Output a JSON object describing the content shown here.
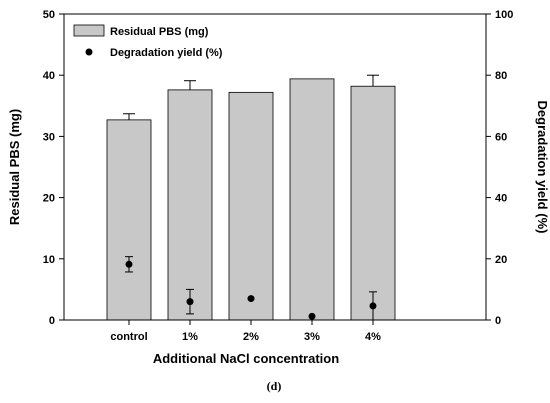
{
  "chart_data": {
    "type": "bar",
    "categories": [
      "control",
      "1%",
      "2%",
      "3%",
      "4%"
    ],
    "series": [
      {
        "name": "Residual PBS (mg)",
        "type": "bar",
        "axis": "left",
        "values": [
          32.7,
          37.6,
          37.2,
          39.4,
          38.2
        ],
        "errors": [
          1.0,
          1.5,
          null,
          null,
          1.8
        ],
        "color": "#c8c8c8"
      },
      {
        "name": "Degradation yield (%)",
        "type": "scatter",
        "axis": "right",
        "values": [
          18.2,
          6.0,
          7.0,
          1.2,
          4.6
        ],
        "errors": [
          2.5,
          4.0,
          null,
          null,
          4.6
        ],
        "color": "#000000"
      }
    ],
    "xlabel": "Additional NaCl concentration",
    "ylabel": "Residual PBS (mg)",
    "y2label": "Degradation yield (%)",
    "ylim": [
      0,
      50
    ],
    "y2lim": [
      0,
      100
    ],
    "yticks": [
      0,
      10,
      20,
      30,
      40,
      50
    ],
    "y2ticks": [
      0,
      20,
      40,
      60,
      80,
      100
    ],
    "legend_position": "top-left",
    "grid": false
  },
  "caption": "(d)"
}
